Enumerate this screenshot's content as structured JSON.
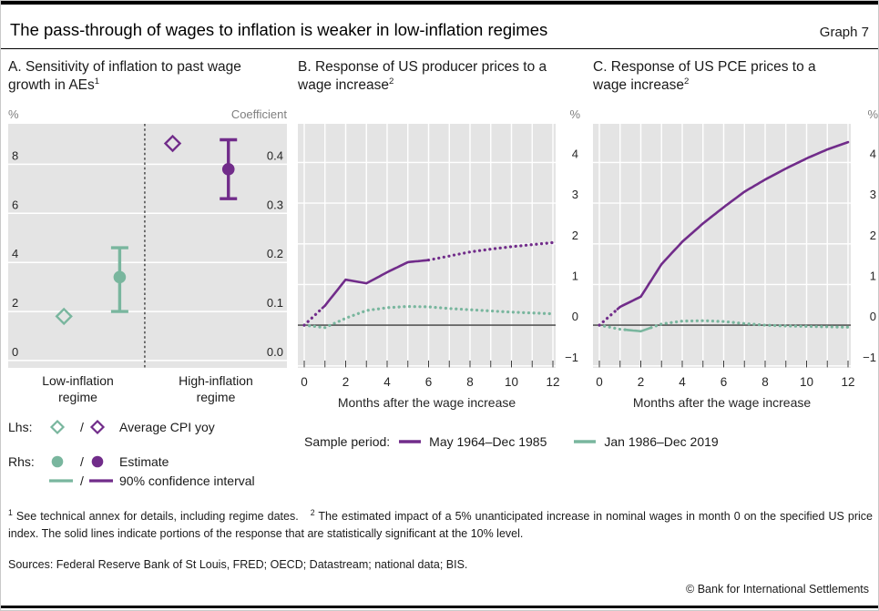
{
  "header": {
    "title": "The pass-through of wages to inflation is weaker in low-inflation regimes",
    "graph_label": "Graph 7"
  },
  "colors": {
    "purple": "#712c8a",
    "green": "#79b69e",
    "plot_bg": "#e4e4e4",
    "grid": "#ffffff",
    "axis_line": "#3a3a3a",
    "text_dark": "#262626",
    "text_gray": "#7f7f7f"
  },
  "chart_data": [
    {
      "id": "A",
      "type": "scatter",
      "title": "A. Sensitivity of inflation to past wage growth in AEs",
      "title_sup": "1",
      "left_axis": {
        "unit": "%",
        "ticks": [
          0,
          2,
          4,
          6,
          8
        ],
        "range": [
          -0.3,
          9.65
        ]
      },
      "right_axis": {
        "unit": "Coefficient",
        "tick_labels": [
          "0.0",
          "0.1",
          "0.2",
          "0.3",
          "0.4"
        ]
      },
      "divider_x": 0.49,
      "categories": [
        "Low-inflation regime",
        "High-inflation regime"
      ],
      "points": [
        {
          "series": "Average CPI yoy",
          "axis": "lhs",
          "regime": "Low-inflation regime",
          "marker": "open-diamond",
          "color": "green",
          "x": 0.2,
          "value_pct": 1.8
        },
        {
          "series": "Estimate",
          "axis": "rhs",
          "regime": "Low-inflation regime",
          "marker": "filled-circle",
          "color": "green",
          "x": 0.4,
          "coefficient": 0.17,
          "ci90": [
            0.1,
            0.23
          ]
        },
        {
          "series": "Average CPI yoy",
          "axis": "lhs",
          "regime": "High-inflation regime",
          "marker": "open-diamond",
          "color": "purple",
          "x": 0.59,
          "value_pct": 8.85
        },
        {
          "series": "Estimate",
          "axis": "rhs",
          "regime": "High-inflation regime",
          "marker": "filled-circle",
          "color": "purple",
          "x": 0.79,
          "coefficient": 0.39,
          "ci90": [
            0.33,
            0.45
          ]
        }
      ]
    },
    {
      "id": "B",
      "type": "line",
      "title": "B. Response of US producer prices to a wage increase",
      "title_sup": "2",
      "xlabel": "Months after the wage increase",
      "ylabel": "%",
      "x": [
        0,
        1,
        2,
        3,
        4,
        5,
        6,
        7,
        8,
        9,
        10,
        11,
        12
      ],
      "x_tick_labels": [
        0,
        2,
        4,
        6,
        8,
        10,
        12
      ],
      "yticks": [
        -1,
        0,
        1,
        2,
        3,
        4
      ],
      "ylim": [
        -1.05,
        4.95
      ],
      "grid": true,
      "legend_position": "bottom",
      "series": [
        {
          "name": "May 1964–Dec 1985",
          "color": "purple",
          "values": [
            0,
            0.48,
            1.12,
            1.03,
            1.3,
            1.55,
            1.6,
            1.7,
            1.8,
            1.87,
            1.93,
            1.98,
            2.03
          ],
          "solid_months": [
            [
              0.9,
              6
            ]
          ]
        },
        {
          "name": "Jan 1986–Dec 2019",
          "color": "green",
          "values": [
            0,
            -0.06,
            0.17,
            0.36,
            0.43,
            0.46,
            0.45,
            0.41,
            0.38,
            0.35,
            0.32,
            0.3,
            0.28
          ],
          "solid_months": []
        }
      ]
    },
    {
      "id": "C",
      "type": "line",
      "title": "C. Response of US PCE prices to a wage increase",
      "title_sup": "2",
      "xlabel": "Months after the wage increase",
      "ylabel": "%",
      "x": [
        0,
        1,
        2,
        3,
        4,
        5,
        6,
        7,
        8,
        9,
        10,
        11,
        12
      ],
      "x_tick_labels": [
        0,
        2,
        4,
        6,
        8,
        10,
        12
      ],
      "yticks": [
        -1,
        0,
        1,
        2,
        3,
        4
      ],
      "ylim": [
        -1.05,
        4.95
      ],
      "grid": true,
      "series": [
        {
          "name": "May 1964–Dec 1985",
          "color": "purple",
          "values": [
            0,
            0.45,
            0.7,
            1.5,
            2.05,
            2.5,
            2.9,
            3.28,
            3.58,
            3.85,
            4.1,
            4.32,
            4.5
          ],
          "solid_months": [
            [
              0.9,
              12
            ]
          ]
        },
        {
          "name": "Jan 1986–Dec 2019",
          "color": "green",
          "values": [
            0,
            -0.1,
            -0.15,
            0.03,
            0.1,
            0.11,
            0.09,
            0.04,
            0,
            -0.02,
            -0.03,
            -0.04,
            -0.05
          ],
          "solid_months": [
            [
              1.2,
              2.5
            ]
          ]
        }
      ]
    }
  ],
  "legend_a": {
    "lhs_label": "Lhs:",
    "rhs_label": "Rhs:",
    "separator": "/",
    "cpi_text": "Average CPI yoy",
    "estimate_text": "Estimate",
    "ci_text": "90% confidence interval"
  },
  "legend_bc": {
    "label": "Sample period:"
  },
  "footnotes": {
    "fn1_sup": "1",
    "fn1_text": "See technical annex for details, including regime dates.",
    "fn2_sup": "2",
    "fn2_text": "The estimated impact of a 5% unanticipated increase in nominal wages in month 0 on the specified US price index. The solid lines indicate portions of the response that are statistically significant at the 10% level."
  },
  "footer": {
    "sources": "Sources: Federal Reserve Bank of St Louis, FRED; OECD; Datastream; national data; BIS.",
    "copyright": "© Bank for International Settlements"
  }
}
